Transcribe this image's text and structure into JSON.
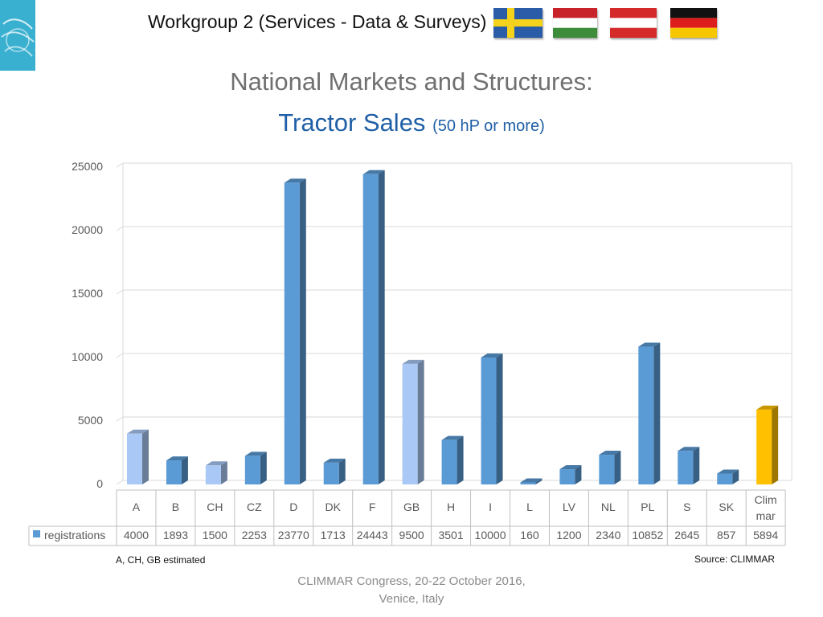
{
  "header": {
    "title": "Workgroup 2 (Services - Data & Surveys)",
    "flags": [
      "sweden-flag",
      "hungary-flag",
      "austria-flag",
      "germany-flag"
    ]
  },
  "slide": {
    "title_line1": "National Markets and Structures:",
    "title_line2_main": "Tractor Sales",
    "title_line2_sub": "(50 hP or more)",
    "note": "A, CH, GB estimated",
    "source": "Source: CLIMMAR",
    "footer_line1": "CLIMMAR Congress, 20-22 October 2016,",
    "footer_line2": "Venice, Italy"
  },
  "colors": {
    "bar": "#5b9bd5",
    "bar_estimated": "#a9c8f5",
    "bar_climmar": "#ffc000",
    "grid": "#d9d9d9",
    "title_gray": "#707070",
    "title_blue": "#1f5fa6"
  },
  "chart_data": {
    "type": "bar",
    "style": "3d",
    "categories": [
      "A",
      "B",
      "CH",
      "CZ",
      "D",
      "DK",
      "F",
      "GB",
      "H",
      "I",
      "L",
      "LV",
      "NL",
      "PL",
      "S",
      "SK",
      "Clim mar"
    ],
    "series": [
      {
        "name": "registrations",
        "values": [
          4000,
          1893,
          1500,
          2253,
          23770,
          1713,
          24443,
          9500,
          3501,
          10000,
          160,
          1200,
          2340,
          10852,
          2645,
          857,
          5894
        ]
      }
    ],
    "estimated": [
      "A",
      "CH",
      "GB"
    ],
    "highlighted": [
      "Clim mar"
    ],
    "yticks": [
      0,
      5000,
      10000,
      15000,
      20000,
      25000
    ],
    "ylim": [
      0,
      25000
    ],
    "grid": true,
    "legend": "data-table-left",
    "data_table": true
  }
}
